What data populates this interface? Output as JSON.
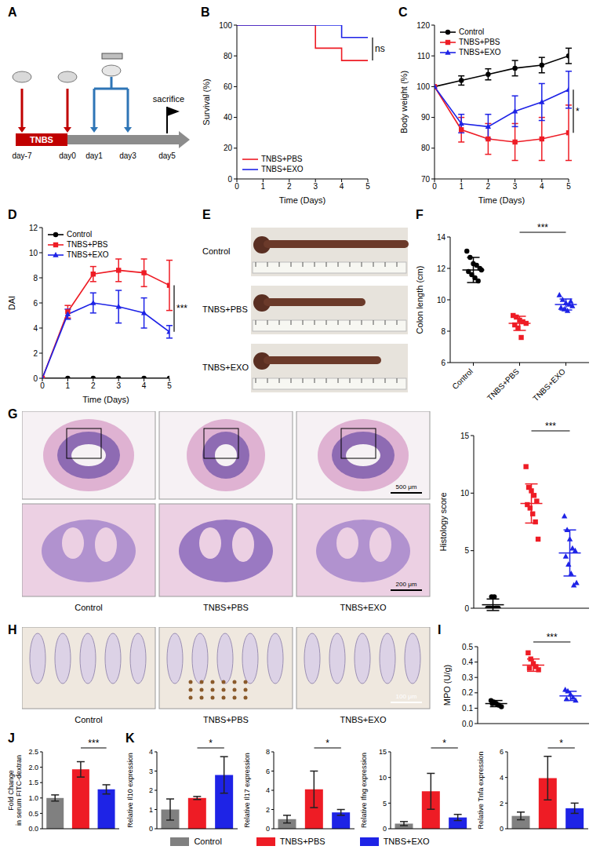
{
  "figure": {
    "schematic": {
      "panel": "A",
      "bar_label": "TNBS",
      "days": [
        "day-7",
        "day0",
        "day1",
        "day3",
        "day5"
      ],
      "end_label": "sacrifice"
    },
    "colon_photos": {
      "panel": "E",
      "rows": [
        "Control",
        "TNBS+PBS",
        "TNBS+EXO"
      ]
    },
    "histology_images": {
      "panel": "G",
      "columns": [
        "Control",
        "TNBS+PBS",
        "TNBS+EXO"
      ],
      "scale_bars": [
        "500 μm",
        "200 μm"
      ]
    },
    "ihc_images": {
      "panel": "H",
      "columns": [
        "Control",
        "TNBS+PBS",
        "TNBS+EXO"
      ],
      "scale_bar": "100 μm"
    },
    "legend": {
      "names": [
        "Control",
        "TNBS+PBS",
        "TNBS+EXO"
      ],
      "colors": [
        "#808080",
        "#ee1c25",
        "#1e23e6"
      ]
    }
  },
  "chart_data": [
    {
      "panel": "B",
      "type": "line",
      "line_style": "step",
      "x": [
        0,
        1,
        2,
        3,
        4,
        5
      ],
      "xlim": [
        0,
        5
      ],
      "xticks": [
        0,
        1,
        2,
        3,
        4,
        5
      ],
      "ylim": [
        0,
        100
      ],
      "yticks": [
        0,
        20,
        40,
        60,
        80,
        100
      ],
      "x_label": "Time (Days)",
      "y_label": "Survival (%)",
      "annotation": "ns",
      "legend": "lower left",
      "series": [
        {
          "name": "TNBS+PBS",
          "color": "#ee1c25",
          "values": [
            100,
            100,
            100,
            85,
            77,
            77
          ]
        },
        {
          "name": "TNBS+EXO",
          "color": "#1e23e6",
          "values": [
            100,
            100,
            100,
            100,
            92,
            92
          ]
        }
      ]
    },
    {
      "panel": "C",
      "type": "line",
      "line_style": "solid",
      "x": [
        0,
        1,
        2,
        3,
        4,
        5
      ],
      "xlim": [
        0,
        5
      ],
      "xticks": [
        0,
        1,
        2,
        3,
        4,
        5
      ],
      "ylim": [
        70,
        120
      ],
      "yticks": [
        70,
        80,
        90,
        100,
        110,
        120
      ],
      "x_label": "Time (Days)",
      "y_label": "Body weight (%)",
      "annotation": "*",
      "legend": "upper left",
      "series": [
        {
          "name": "Control",
          "color": "#000000",
          "marker": "circle",
          "values": [
            100,
            102,
            104,
            106,
            107,
            110
          ],
          "errors": [
            0,
            1.5,
            1.8,
            2.5,
            2.5,
            2.5
          ]
        },
        {
          "name": "TNBS+PBS",
          "color": "#ee1c25",
          "marker": "square",
          "values": [
            100,
            86,
            83,
            82,
            83,
            85
          ],
          "errors": [
            0,
            4,
            5,
            6,
            7,
            9
          ]
        },
        {
          "name": "TNBS+EXO",
          "color": "#1e23e6",
          "marker": "triangle",
          "values": [
            100,
            88,
            87,
            92,
            95,
            99
          ],
          "errors": [
            0,
            3,
            4,
            5,
            6,
            6
          ]
        }
      ]
    },
    {
      "panel": "D",
      "type": "line",
      "line_style": "solid",
      "x": [
        0,
        1,
        2,
        3,
        4,
        5
      ],
      "xlim": [
        0,
        5
      ],
      "xticks": [
        0,
        1,
        2,
        3,
        4,
        5
      ],
      "ylim": [
        0,
        12
      ],
      "yticks": [
        0,
        2,
        4,
        6,
        8,
        10,
        12
      ],
      "x_label": "Time (Days)",
      "y_label": "DAI",
      "annotation": "***",
      "legend": "upper left",
      "series": [
        {
          "name": "Control",
          "color": "#000000",
          "marker": "circle",
          "values": [
            0,
            0,
            0,
            0,
            0,
            0
          ],
          "errors": [
            0,
            0,
            0,
            0,
            0,
            0
          ]
        },
        {
          "name": "TNBS+PBS",
          "color": "#ee1c25",
          "marker": "square",
          "values": [
            0,
            5.3,
            8.3,
            8.6,
            8.4,
            7.4
          ],
          "errors": [
            0,
            0.5,
            0.6,
            0.9,
            1.1,
            2.0
          ]
        },
        {
          "name": "TNBS+EXO",
          "color": "#1e23e6",
          "marker": "triangle",
          "values": [
            0,
            5.1,
            6.0,
            5.7,
            5.2,
            3.7
          ],
          "errors": [
            0,
            0.4,
            0.8,
            1.3,
            1.2,
            0.5
          ]
        }
      ]
    },
    {
      "panel": "F",
      "type": "scatter",
      "categories": [
        "Control",
        "TNBS+PBS",
        "TNBS+EXO"
      ],
      "ylim": [
        6,
        14
      ],
      "yticks": [
        6,
        8,
        10,
        12,
        14
      ],
      "y_label": "Colon length (cm)",
      "annotation": "***",
      "tick_labels": true,
      "groups": [
        {
          "color": "#000000",
          "marker": "circle",
          "values": [
            13.1,
            12.7,
            12.3,
            12.2,
            12.0,
            11.8,
            11.6,
            11.4,
            11.2,
            11.9
          ],
          "mean": 11.9,
          "sd": 0.8
        },
        {
          "color": "#ee1c25",
          "marker": "square",
          "values": [
            9.0,
            8.9,
            8.7,
            8.6,
            8.5,
            8.4,
            8.2,
            7.6
          ],
          "mean": 8.5,
          "sd": 0.45
        },
        {
          "color": "#1e23e6",
          "marker": "triangle",
          "values": [
            10.3,
            10.0,
            9.8,
            9.7,
            9.6,
            9.5,
            9.4,
            9.3,
            9.9
          ],
          "mean": 9.7,
          "sd": 0.35
        }
      ]
    },
    {
      "type": "scatter",
      "categories": [
        "Control",
        "TNBS+PBS",
        "TNBS+EXO"
      ],
      "ylim": [
        0,
        15
      ],
      "yticks": [
        0,
        5,
        10,
        15
      ],
      "y_label": "Histology score",
      "annotation": "***",
      "tick_labels": "y",
      "groups": [
        {
          "color": "#000000",
          "marker": "circle",
          "values": [
            0,
            0,
            0,
            0,
            0,
            0,
            1,
            1,
            0
          ],
          "mean": 0.3,
          "sd": 0.5
        },
        {
          "color": "#ee1c25",
          "marker": "square",
          "values": [
            12.3,
            10.5,
            10.2,
            9.8,
            9.3,
            9.0,
            8.7,
            8.2,
            7.5,
            6.0
          ],
          "mean": 9.1,
          "sd": 1.7
        },
        {
          "color": "#1e23e6",
          "marker": "triangle",
          "values": [
            8.0,
            6.8,
            6.0,
            5.2,
            5.0,
            4.5,
            3.8,
            3.0,
            2.0,
            2.2
          ],
          "mean": 4.8,
          "sd": 2.0
        }
      ]
    },
    {
      "panel": "I",
      "type": "scatter",
      "categories": [
        "Control",
        "TNBS+PBS",
        "TNBS+EXO"
      ],
      "ylim": [
        0,
        0.5
      ],
      "yticks": [
        {
          "value": 0,
          "label": "0.0"
        },
        0.1,
        0.2,
        0.3,
        0.4,
        0.5
      ],
      "y_label": "MPO (U/g)",
      "annotation": "***",
      "tick_labels": "y",
      "groups": [
        {
          "color": "#000000",
          "marker": "circle",
          "values": [
            0.15,
            0.14,
            0.13,
            0.12,
            0.11,
            0.13
          ],
          "mean": 0.13,
          "sd": 0.02
        },
        {
          "color": "#ee1c25",
          "marker": "square",
          "values": [
            0.46,
            0.42,
            0.39,
            0.37,
            0.35,
            0.36
          ],
          "mean": 0.38,
          "sd": 0.04
        },
        {
          "color": "#1e23e6",
          "marker": "triangle",
          "values": [
            0.22,
            0.21,
            0.19,
            0.17,
            0.15,
            0.16
          ],
          "mean": 0.18,
          "sd": 0.03
        }
      ]
    },
    {
      "panel": "J",
      "type": "bar",
      "categories": [
        "Control",
        "TNBS+PBS",
        "TNBS+EXO"
      ],
      "colors": [
        "#808080",
        "#ee1c25",
        "#1e23e6"
      ],
      "values": [
        1.0,
        1.93,
        1.28
      ],
      "errors": [
        0.1,
        0.25,
        0.15
      ],
      "ylim": [
        0,
        2.5
      ],
      "yticks": [
        {
          "value": 0,
          "label": "0.0"
        },
        0.5,
        {
          "value": 1,
          "label": "1.0"
        },
        1.5,
        {
          "value": 2,
          "label": "2.0"
        },
        2.5
      ],
      "y_label": [
        "Fold Change",
        "in serum FITC-dextran"
      ],
      "annotation": "***",
      "tick_labels": "y"
    },
    {
      "panel": "K",
      "type": "bar",
      "categories": [
        "Control",
        "TNBS+PBS",
        "TNBS+EXO"
      ],
      "colors": [
        "#808080",
        "#ee1c25",
        "#1e23e6"
      ],
      "values": [
        1.0,
        1.6,
        2.8
      ],
      "errors": [
        0.55,
        0.08,
        0.95
      ],
      "ylim": [
        0,
        4
      ],
      "yticks": [
        0,
        1,
        2,
        3,
        4
      ],
      "y_label": "Relative Il10 expression",
      "annotation": "*",
      "tick_labels": "y"
    },
    {
      "type": "bar",
      "categories": [
        "Control",
        "TNBS+PBS",
        "TNBS+EXO"
      ],
      "colors": [
        "#808080",
        "#ee1c25",
        "#1e23e6"
      ],
      "values": [
        1.0,
        4.1,
        1.7
      ],
      "errors": [
        0.4,
        1.9,
        0.3
      ],
      "ylim": [
        0,
        8
      ],
      "yticks": [
        0,
        2,
        4,
        6,
        8
      ],
      "y_label": "Relative Il17 expression",
      "annotation": "*",
      "tick_labels": "y"
    },
    {
      "type": "bar",
      "categories": [
        "Control",
        "TNBS+PBS",
        "TNBS+EXO"
      ],
      "colors": [
        "#808080",
        "#ee1c25",
        "#1e23e6"
      ],
      "values": [
        1.0,
        7.3,
        2.2
      ],
      "errors": [
        0.4,
        3.5,
        0.6
      ],
      "ylim": [
        0,
        15
      ],
      "yticks": [
        0,
        5,
        10,
        15
      ],
      "y_label": "Relative Ifng expression",
      "annotation": "*",
      "tick_labels": "y"
    },
    {
      "type": "bar",
      "categories": [
        "Control",
        "TNBS+PBS",
        "TNBS+EXO"
      ],
      "colors": [
        "#808080",
        "#ee1c25",
        "#1e23e6"
      ],
      "values": [
        1.0,
        3.95,
        1.6
      ],
      "errors": [
        0.3,
        1.7,
        0.4
      ],
      "ylim": [
        0,
        6
      ],
      "yticks": [
        0,
        2,
        4,
        6
      ],
      "y_label": "Relative Tnfa expression",
      "annotation": "*",
      "tick_labels": "y"
    }
  ]
}
